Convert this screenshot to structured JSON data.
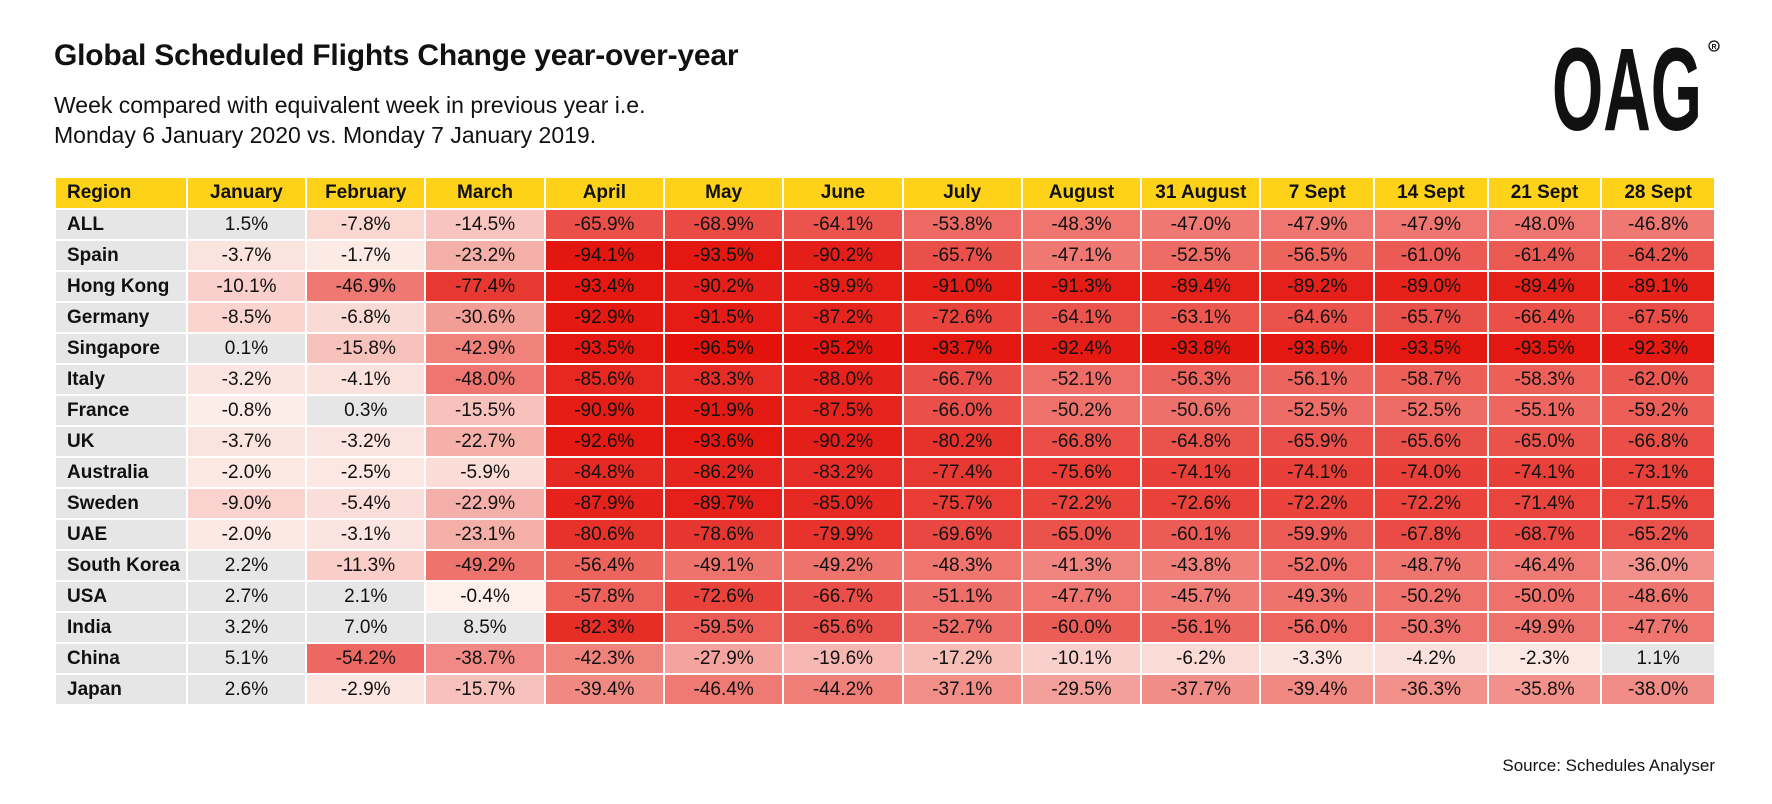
{
  "title": "Global Scheduled Flights Change year-over-year",
  "subtitle_line1": "Week compared with equivalent week in previous year i.e.",
  "subtitle_line2": "Monday 6 January 2020 vs. Monday 7 January 2019.",
  "logo_text": "OAG",
  "source": "Source: Schedules Analyser",
  "colors": {
    "header_bg": "#ffd21a",
    "region_bg": "#e6e6e6",
    "positive_bg": "#e6e6e6",
    "scale_light": "#fdf1ec",
    "scale_dark": "#e3120b"
  },
  "chart_data": {
    "type": "table",
    "value_unit": "%",
    "columns": [
      "Region",
      "January",
      "February",
      "March",
      "April",
      "May",
      "June",
      "July",
      "August",
      "31 August",
      "7 Sept",
      "14 Sept",
      "21 Sept",
      "28 Sept"
    ],
    "rows": [
      {
        "region": "ALL",
        "values": [
          1.5,
          -7.8,
          -14.5,
          -65.9,
          -68.9,
          -64.1,
          -53.8,
          -48.3,
          -47.0,
          -47.9,
          -47.9,
          -48.0,
          -46.8
        ]
      },
      {
        "region": "Spain",
        "values": [
          -3.7,
          -1.7,
          -23.2,
          -94.1,
          -93.5,
          -90.2,
          -65.7,
          -47.1,
          -52.5,
          -56.5,
          -61.0,
          -61.4,
          -64.2
        ]
      },
      {
        "region": "Hong Kong",
        "values": [
          -10.1,
          -46.9,
          -77.4,
          -93.4,
          -90.2,
          -89.9,
          -91.0,
          -91.3,
          -89.4,
          -89.2,
          -89.0,
          -89.4,
          -89.1
        ]
      },
      {
        "region": "Germany",
        "values": [
          -8.5,
          -6.8,
          -30.6,
          -92.9,
          -91.5,
          -87.2,
          -72.6,
          -64.1,
          -63.1,
          -64.6,
          -65.7,
          -66.4,
          -67.5
        ]
      },
      {
        "region": "Singapore",
        "values": [
          0.1,
          -15.8,
          -42.9,
          -93.5,
          -96.5,
          -95.2,
          -93.7,
          -92.4,
          -93.8,
          -93.6,
          -93.5,
          -93.5,
          -92.3
        ]
      },
      {
        "region": "Italy",
        "values": [
          -3.2,
          -4.1,
          -48.0,
          -85.6,
          -83.3,
          -88.0,
          -66.7,
          -52.1,
          -56.3,
          -56.1,
          -58.7,
          -58.3,
          -62.0
        ]
      },
      {
        "region": "France",
        "values": [
          -0.8,
          0.3,
          -15.5,
          -90.9,
          -91.9,
          -87.5,
          -66.0,
          -50.2,
          -50.6,
          -52.5,
          -52.5,
          -55.1,
          -59.2
        ]
      },
      {
        "region": "UK",
        "values": [
          -3.7,
          -3.2,
          -22.7,
          -92.6,
          -93.6,
          -90.2,
          -80.2,
          -66.8,
          -64.8,
          -65.9,
          -65.6,
          -65.0,
          -66.8
        ]
      },
      {
        "region": "Australia",
        "values": [
          -2.0,
          -2.5,
          -5.9,
          -84.8,
          -86.2,
          -83.2,
          -77.4,
          -75.6,
          -74.1,
          -74.1,
          -74.0,
          -74.1,
          -73.1
        ]
      },
      {
        "region": "Sweden",
        "values": [
          -9.0,
          -5.4,
          -22.9,
          -87.9,
          -89.7,
          -85.0,
          -75.7,
          -72.2,
          -72.6,
          -72.2,
          -72.2,
          -71.4,
          -71.5
        ]
      },
      {
        "region": "UAE",
        "values": [
          -2.0,
          -3.1,
          -23.1,
          -80.6,
          -78.6,
          -79.9,
          -69.6,
          -65.0,
          -60.1,
          -59.9,
          -67.8,
          -68.7,
          -65.2
        ]
      },
      {
        "region": "South Korea",
        "values": [
          2.2,
          -11.3,
          -49.2,
          -56.4,
          -49.1,
          -49.2,
          -48.3,
          -41.3,
          -43.8,
          -52.0,
          -48.7,
          -46.4,
          -36.0
        ]
      },
      {
        "region": "USA",
        "values": [
          2.7,
          2.1,
          -0.4,
          -57.8,
          -72.6,
          -66.7,
          -51.1,
          -47.7,
          -45.7,
          -49.3,
          -50.2,
          -50.0,
          -48.6
        ]
      },
      {
        "region": "India",
        "values": [
          3.2,
          7.0,
          8.5,
          -82.3,
          -59.5,
          -65.6,
          -52.7,
          -60.0,
          -56.1,
          -56.0,
          -50.3,
          -49.9,
          -47.7
        ]
      },
      {
        "region": "China",
        "values": [
          5.1,
          -54.2,
          -38.7,
          -42.3,
          -27.9,
          -19.6,
          -17.2,
          -10.1,
          -6.2,
          -3.3,
          -4.2,
          -2.3,
          1.1
        ]
      },
      {
        "region": "Japan",
        "values": [
          2.6,
          -2.9,
          -15.7,
          -39.4,
          -46.4,
          -44.2,
          -37.1,
          -29.5,
          -37.7,
          -39.4,
          -36.3,
          -35.8,
          -38.0
        ]
      }
    ]
  }
}
